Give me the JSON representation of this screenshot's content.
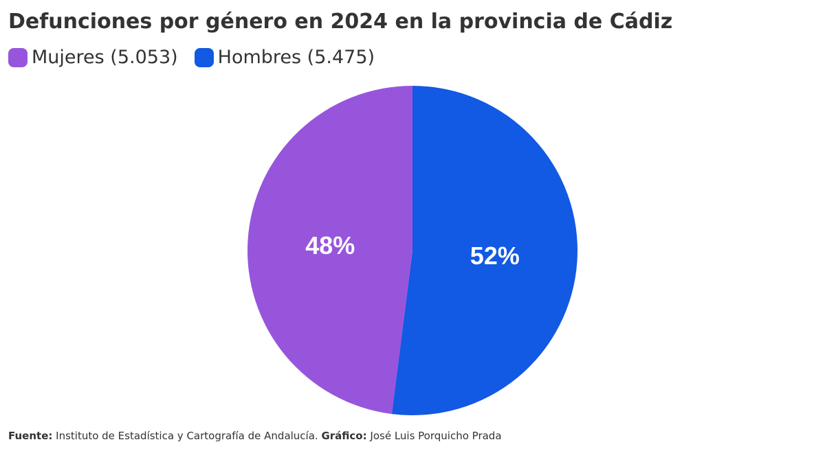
{
  "title": "Defunciones por género en 2024 en la provincia de Cádiz",
  "legend": [
    {
      "label": "Mujeres (5.053)",
      "color": "#9755DC"
    },
    {
      "label": "Hombres (5.475)",
      "color": "#1259E3"
    }
  ],
  "footer": {
    "source_key": "Fuente:",
    "source_value": "Instituto de Estadística y Cartografía de Andalucía.",
    "credit_key": "Gráfico:",
    "credit_value": "José Luis Porquicho Prada"
  },
  "chart_data": {
    "type": "pie",
    "title": "Defunciones por género en 2024 en la provincia de Cádiz",
    "slices": [
      {
        "name": "Mujeres",
        "value": 5053,
        "label": "48%",
        "color": "#9755DC"
      },
      {
        "name": "Hombres",
        "value": 5475,
        "label": "52%",
        "color": "#1259E3"
      }
    ],
    "legend_position": "top-left"
  }
}
